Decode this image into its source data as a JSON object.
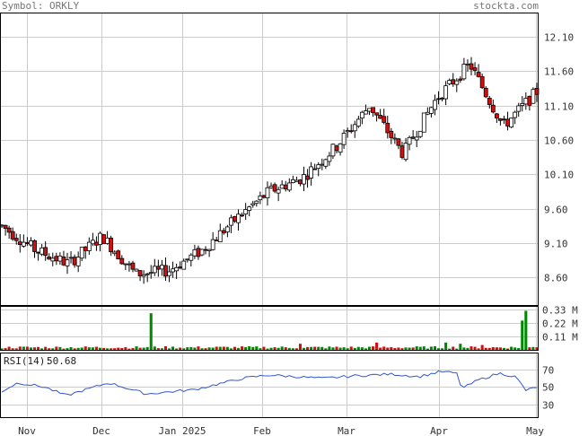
{
  "header": {
    "symbol_label": "Symbol: ORKLY",
    "site": "stockta.com"
  },
  "colors": {
    "up": "#ffffff",
    "down": "#d11111",
    "vol_up": "#008800",
    "vol_down": "#cc1111",
    "grid": "#cccccc",
    "rsi_line": "#3355cc",
    "border": "#000000"
  },
  "chart_data": [
    {
      "type": "candlestick",
      "name": "price",
      "yticks": [
        8.6,
        9.1,
        9.6,
        10.1,
        10.6,
        11.1,
        11.6,
        12.1
      ],
      "ytick_labels": [
        "8.60",
        "9.10",
        "9.60",
        "10.10",
        "10.60",
        "11.10",
        "11.60",
        "12.10"
      ],
      "ylim": [
        8.2,
        12.45
      ],
      "xlabels": [
        "Nov",
        "Dec",
        "Jan 2025",
        "Feb",
        "Mar",
        "Apr",
        "May"
      ],
      "anchors": [
        [
          9.35,
          9.5,
          9.5,
          9.35
        ],
        [
          9.0,
          9.3,
          9.3,
          9.0
        ],
        [
          8.8,
          8.95,
          8.95,
          8.8
        ],
        [
          9.2,
          9.4,
          9.4,
          9.2
        ],
        [
          8.65,
          8.75,
          8.75,
          8.65
        ],
        [
          8.7,
          8.8,
          8.8,
          8.7
        ],
        [
          9.0,
          9.1,
          9.1,
          9.0
        ],
        [
          9.45,
          9.6,
          9.6,
          9.45
        ],
        [
          9.85,
          10.05,
          10.05,
          9.85
        ],
        [
          10.05,
          10.1,
          10.1,
          10.05
        ],
        [
          10.5,
          10.9,
          10.9,
          10.5
        ],
        [
          11.1,
          11.3,
          11.3,
          11.1
        ],
        [
          10.4,
          10.3,
          10.3,
          10.4
        ],
        [
          11.2,
          11.35,
          11.35,
          11.2
        ],
        [
          11.7,
          11.85,
          11.85,
          11.7
        ],
        [
          10.8,
          10.9,
          10.9,
          10.8
        ],
        [
          11.3,
          11.2,
          11.2,
          11.3
        ]
      ]
    },
    {
      "type": "bar",
      "name": "volume",
      "yticks": [
        0.11,
        0.22,
        0.33
      ],
      "ytick_labels": [
        "0.11 M",
        "0.22 M",
        "0.33 M"
      ],
      "ylim": [
        0,
        0.36
      ],
      "spikes": [
        [
          0.28,
          0.3
        ],
        [
          0.56,
          0.05
        ],
        [
          0.7,
          0.06
        ],
        [
          0.83,
          0.06
        ],
        [
          0.86,
          0.05
        ],
        [
          0.9,
          0.04
        ],
        [
          0.97,
          0.24
        ],
        [
          0.98,
          0.32
        ]
      ]
    },
    {
      "type": "line",
      "name": "rsi",
      "label": "RSI(14):",
      "value_label": "50.68",
      "yticks": [
        30,
        50,
        70
      ],
      "ytick_labels": [
        "30",
        "50",
        "70"
      ],
      "ylim": [
        15,
        90
      ],
      "anchors": [
        [
          0.0,
          45
        ],
        [
          0.03,
          55
        ],
        [
          0.08,
          50
        ],
        [
          0.12,
          40
        ],
        [
          0.2,
          55
        ],
        [
          0.27,
          42
        ],
        [
          0.36,
          47
        ],
        [
          0.45,
          60
        ],
        [
          0.5,
          64
        ],
        [
          0.6,
          60
        ],
        [
          0.66,
          63
        ],
        [
          0.73,
          65
        ],
        [
          0.78,
          62
        ],
        [
          0.82,
          68
        ],
        [
          0.85,
          66
        ],
        [
          0.86,
          48
        ],
        [
          0.89,
          58
        ],
        [
          0.93,
          66
        ],
        [
          0.96,
          62
        ],
        [
          0.98,
          46
        ],
        [
          1.0,
          50
        ]
      ]
    }
  ]
}
